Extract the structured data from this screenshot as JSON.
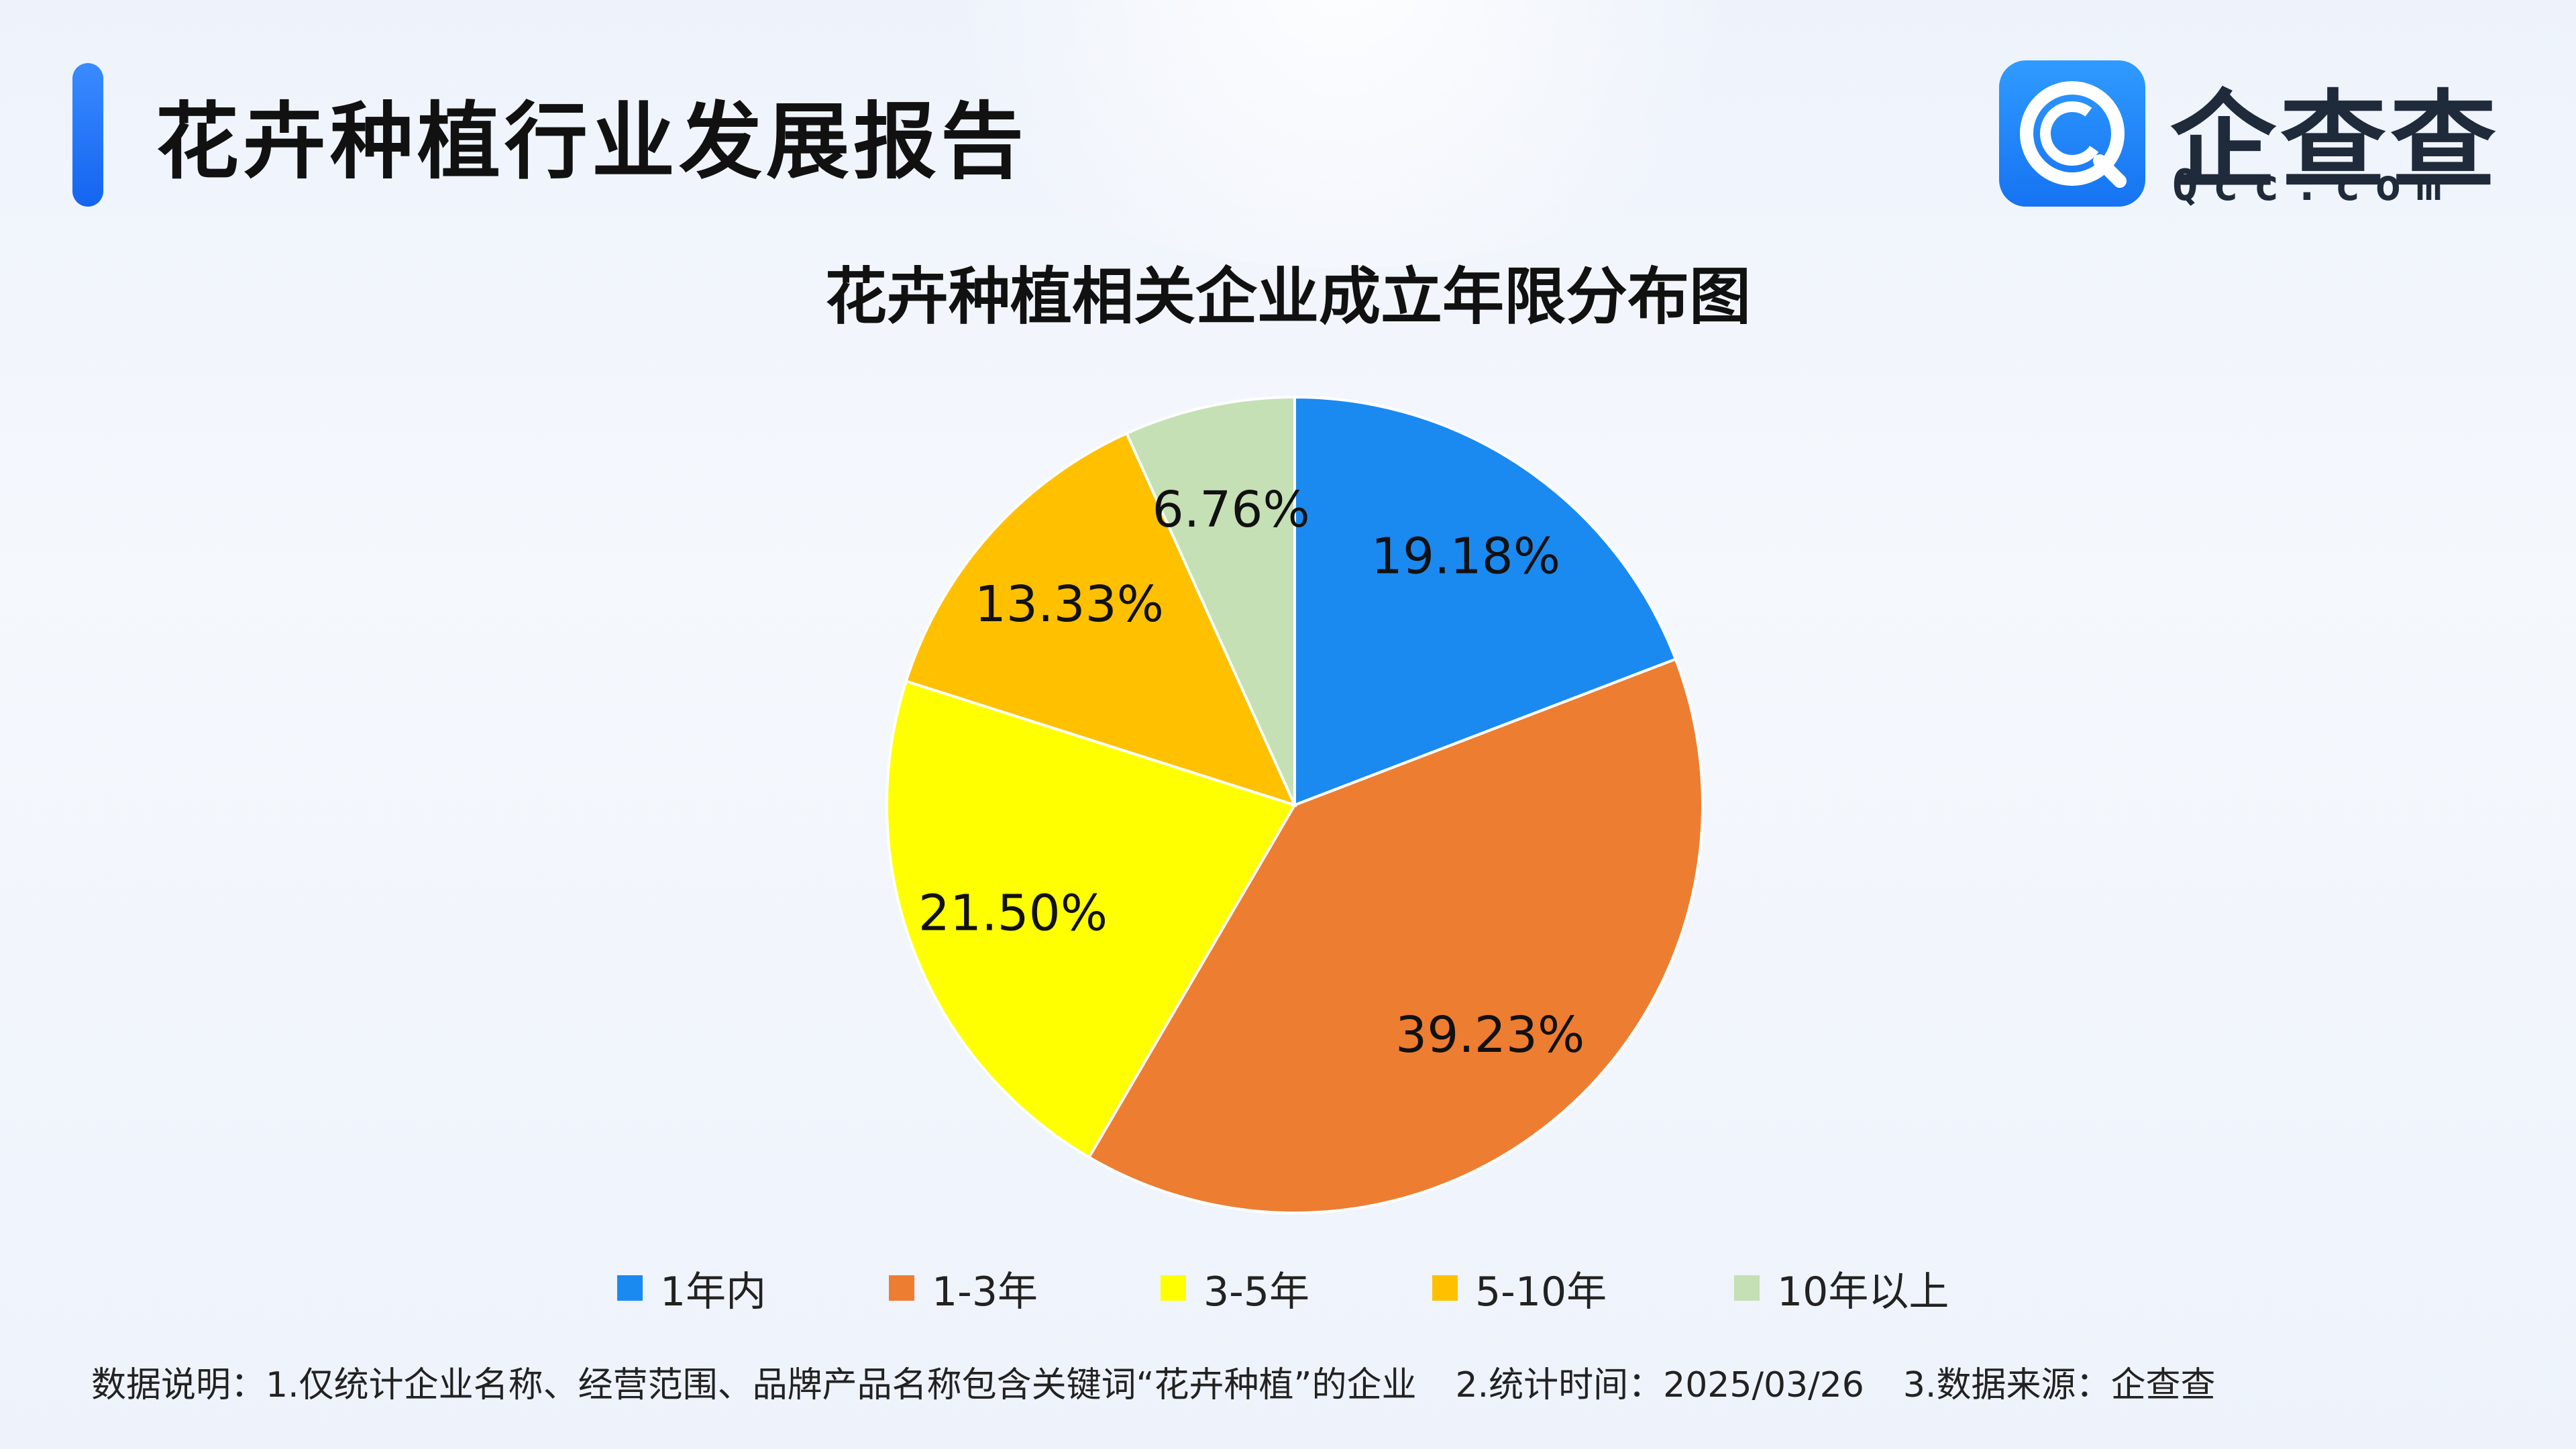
{
  "header": {
    "title": "花卉种植行业发展报告"
  },
  "logo": {
    "icon": "qcc-logo-icon",
    "name": "企查查",
    "domain": "Qcc.com",
    "brand_color": "#1a7cf5"
  },
  "chart_data": {
    "type": "pie",
    "title": "花卉种植相关企业成立年限分布图",
    "categories": [
      "1年内",
      "1-3年",
      "3-5年",
      "5-10年",
      "10年以上"
    ],
    "values": [
      19.18,
      39.23,
      21.5,
      13.33,
      6.76
    ],
    "labels": [
      "19.18%",
      "39.23%",
      "21.50%",
      "13.33%",
      "6.76%"
    ],
    "colors": [
      "#1a8af0",
      "#ed7d31",
      "#ffff00",
      "#ffc000",
      "#c5e0b4"
    ],
    "start": "12 o'clock, clockwise",
    "legend_position": "bottom"
  },
  "footnote": {
    "item1": "数据说明：1.仅统计企业名称、经营范围、品牌产品名称包含关键词“花卉种植”的企业",
    "item2": "2.统计时间：2025/03/26",
    "item3": "3.数据来源：企查查"
  }
}
